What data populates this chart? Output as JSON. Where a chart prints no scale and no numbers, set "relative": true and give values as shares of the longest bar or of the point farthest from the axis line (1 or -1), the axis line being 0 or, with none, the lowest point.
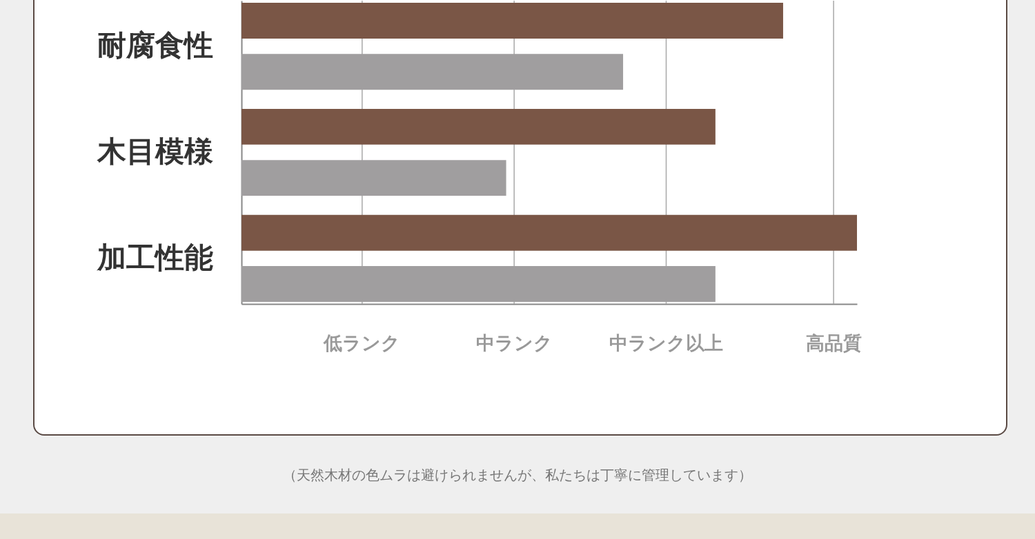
{
  "chart_data": {
    "type": "bar",
    "orientation": "horizontal",
    "relative": true,
    "categories": [
      "耐腐食性",
      "木目模様",
      "加工性能"
    ],
    "series": [
      {
        "color": "#7a5646",
        "values": [
          0.88,
          0.77,
          1
        ]
      },
      {
        "color": "#a09e9f",
        "values": [
          0.62,
          0.43,
          0.77
        ]
      }
    ],
    "ref_lines": [
      {
        "axis": "x",
        "value": 0.196,
        "label": "低ランク",
        "color": "#a8a8a8"
      },
      {
        "axis": "x",
        "value": 0.443,
        "label": "中ランク",
        "color": "#a8a8a8"
      },
      {
        "axis": "x",
        "value": 0.69,
        "label": "中ランク以上",
        "color": "#a8a8a8"
      },
      {
        "axis": "x",
        "value": 0.962,
        "label": "高品質",
        "color": "#a8a8a8"
      }
    ],
    "legend": false,
    "annotations": [
      "（天然木材の色ムラは避けられませんが、私たちは丁寧に管理しています）"
    ]
  }
}
